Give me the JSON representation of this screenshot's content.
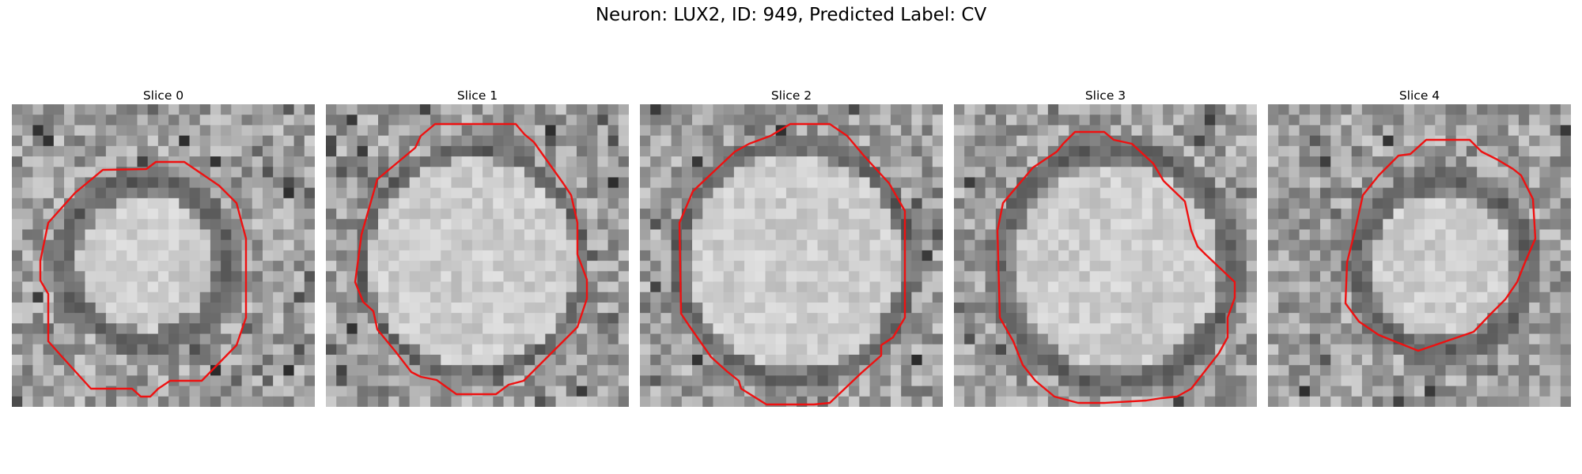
{
  "figure": {
    "title": "Neuron: LUX2, ID: 949, Predicted Label: CV"
  },
  "contour_color": "#ee1111",
  "panels": [
    {
      "title": "Slice 0"
    },
    {
      "title": "Slice 1"
    },
    {
      "title": "Slice 2"
    },
    {
      "title": "Slice 3"
    },
    {
      "title": "Slice 4"
    }
  ]
}
